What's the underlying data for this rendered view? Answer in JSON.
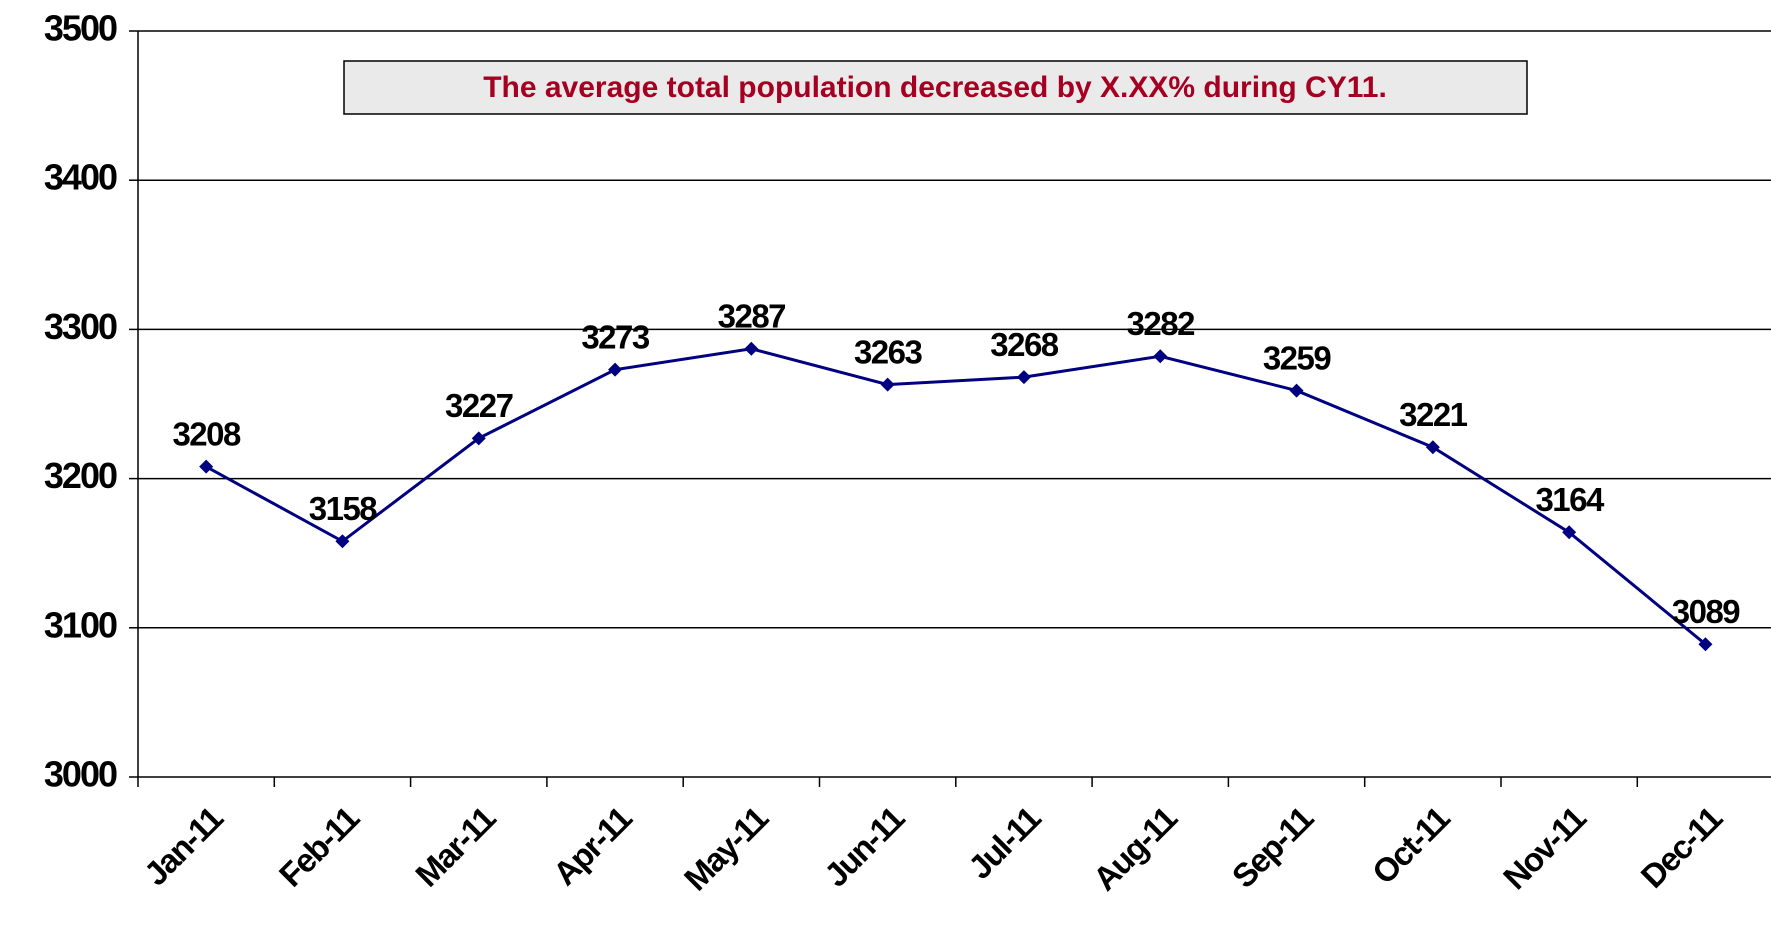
{
  "chart_data": {
    "type": "line",
    "annotation": "The average total population decreased by X.XX% during CY11.",
    "categories": [
      "Jan-11",
      "Feb-11",
      "Mar-11",
      "Apr-11",
      "May-11",
      "Jun-11",
      "Jul-11",
      "Aug-11",
      "Sep-11",
      "Oct-11",
      "Nov-11",
      "Dec-11"
    ],
    "values": [
      3208,
      3158,
      3227,
      3273,
      3287,
      3263,
      3268,
      3282,
      3259,
      3221,
      3164,
      3089
    ],
    "color": "#000080",
    "ylim": [
      3000,
      3500
    ],
    "yticks": [
      3000,
      3100,
      3200,
      3300,
      3400,
      3500
    ],
    "grid": true
  }
}
